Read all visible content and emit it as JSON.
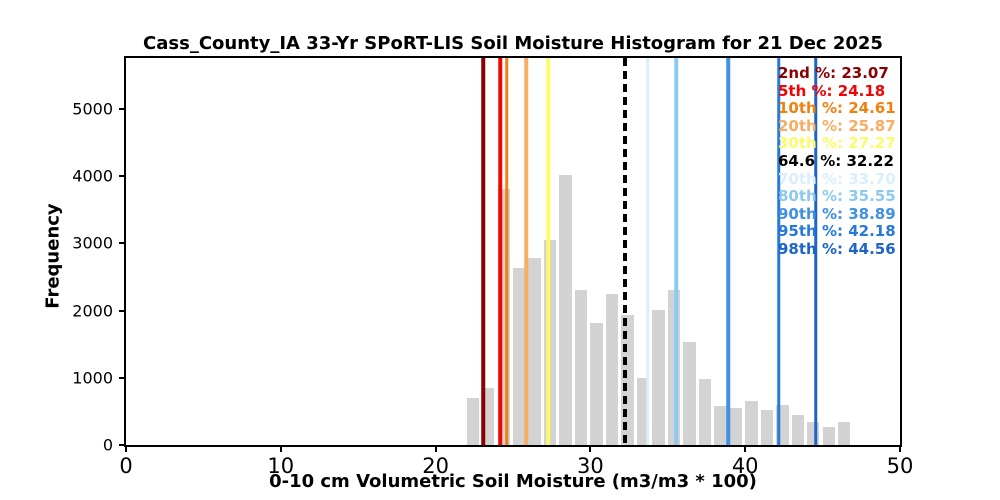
{
  "chart_data": {
    "type": "bar",
    "subtype": "histogram",
    "title": "Cass_County_IA 33-Yr SPoRT-LIS Soil Moisture Histogram for 21 Dec 2025",
    "xlabel": "0-10 cm Volumetric Soil Moisture (m3/m3 * 100)",
    "ylabel": "Frequency",
    "xlim": [
      0,
      50
    ],
    "ylim": [
      0,
      5755
    ],
    "xticks": [
      0,
      10,
      20,
      30,
      40,
      50
    ],
    "yticks": [
      0,
      1000,
      2000,
      3000,
      4000,
      5000
    ],
    "grid": false,
    "bar_color": "#d3d3d3",
    "bin_width": 1.0,
    "bar_width": 0.8,
    "bin_centers": [
      22.4,
      23.4,
      24.4,
      25.4,
      26.4,
      27.4,
      28.4,
      29.4,
      30.4,
      31.4,
      32.4,
      33.4,
      34.4,
      35.4,
      36.4,
      37.4,
      38.4,
      39.4,
      40.4,
      41.4,
      42.4,
      43.4,
      44.4,
      45.4,
      46.4
    ],
    "frequencies": [
      705,
      850,
      3800,
      2630,
      2775,
      3050,
      4015,
      2305,
      1820,
      2245,
      1935,
      1000,
      2010,
      2305,
      1530,
      975,
      585,
      550,
      655,
      520,
      595,
      445,
      340,
      270,
      345
    ],
    "legend_position": "top-right",
    "percentile_lines": [
      {
        "label": "2nd %",
        "value": "23.07",
        "color": "#8B0000",
        "style": "solid"
      },
      {
        "label": "5th %",
        "value": "24.18",
        "color": "#F00404",
        "style": "solid"
      },
      {
        "label": "10th %",
        "value": "24.61",
        "color": "#F08010",
        "style": "solid"
      },
      {
        "label": "20th %",
        "value": "25.87",
        "color": "#F7AD63",
        "style": "solid"
      },
      {
        "label": "30th %",
        "value": "27.27",
        "color": "#FBFB6B",
        "style": "solid"
      },
      {
        "label": "64.6 %",
        "value": "32.22",
        "color": "#000000",
        "style": "dashed"
      },
      {
        "label": "70th %",
        "value": "33.70",
        "color": "#D9EFFA",
        "style": "solid"
      },
      {
        "label": "80th %",
        "value": "35.55",
        "color": "#8CC9EE",
        "style": "solid"
      },
      {
        "label": "90th %",
        "value": "38.89",
        "color": "#4191E2",
        "style": "solid"
      },
      {
        "label": "95th %",
        "value": "42.18",
        "color": "#2679DA",
        "style": "solid"
      },
      {
        "label": "98th %",
        "value": "44.56",
        "color": "#1C64C8",
        "style": "solid"
      }
    ]
  }
}
